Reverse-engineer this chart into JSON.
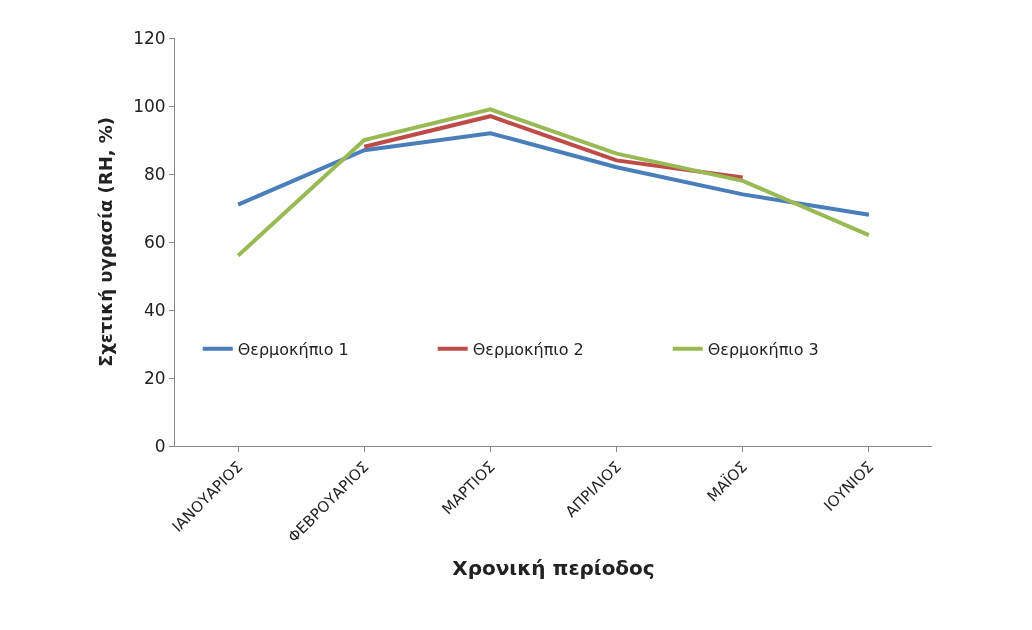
{
  "chart_data": {
    "type": "line",
    "xlabel": "Χρονική περίοδος",
    "ylabel": "Σχετική υγρασία (RH, %)",
    "categories": [
      "ΙΑΝΟΥΑΡΙΟΣ",
      "ΦΕΒΡΟΥΑΡΙΟΣ",
      "ΜΑΡΤΙΟΣ",
      "ΑΠΡΙΛΙΟΣ",
      "ΜΑΪΟΣ",
      "ΙΟΥΝΙΟΣ"
    ],
    "series": [
      {
        "name": "Θερμοκήπιο 1",
        "color": "#4a7ebb",
        "values": [
          71,
          87,
          92,
          82,
          74,
          68
        ]
      },
      {
        "name": "Θερμοκήπιο 2",
        "color": "#be4b48",
        "values": [
          null,
          88,
          97,
          84,
          79,
          null
        ]
      },
      {
        "name": "Θερμοκήπιο 3",
        "color": "#98b954",
        "values": [
          56,
          90,
          99,
          86,
          78,
          62
        ]
      }
    ],
    "ylim": [
      0,
      120
    ],
    "yticks": [
      0,
      20,
      40,
      60,
      80,
      100,
      120
    ],
    "grid": false,
    "legend": "bottom left",
    "marker": "none",
    "line_style": "solid"
  }
}
